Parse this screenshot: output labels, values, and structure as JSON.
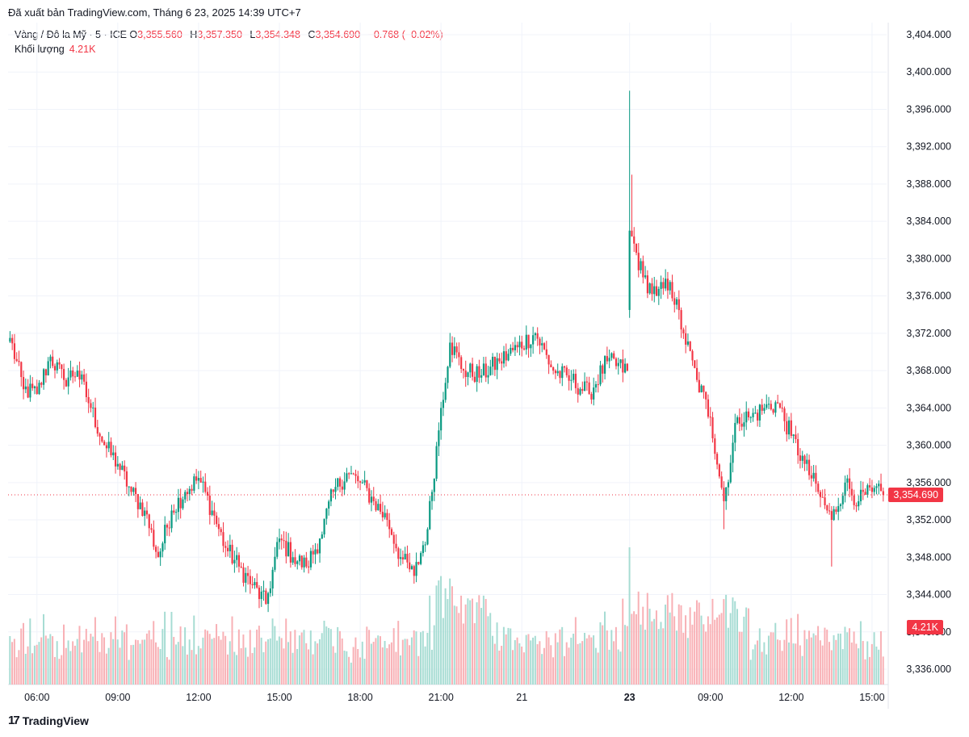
{
  "header": {
    "published": "Đã xuất bản TradingView.com, Tháng 6 23, 2025 14:39 UTC+7"
  },
  "legend": {
    "symbol": "Vàng / Đô la Mỹ · 5 · ICE",
    "o_label": "O",
    "o_value": "3,355.560",
    "h_label": "H",
    "h_value": "3,357.350",
    "l_label": "L",
    "l_value": "3,354.348",
    "c_label": "C",
    "c_value": "3,354.690",
    "change": "−0.768 (−0.02%)",
    "volume_label": "Khối lượng",
    "volume_value": "4.21K"
  },
  "price_tags": {
    "last_price": "3,354.690",
    "last_volume": "4.21K"
  },
  "footer": {
    "brand": "TradingView"
  },
  "colors": {
    "up": "#089981",
    "down": "#f23645",
    "vol_up": "#a6dcd3",
    "vol_down": "#f8b0b5",
    "grid": "#f0f3fa",
    "text": "#131722",
    "axis_text": "#131722"
  },
  "chart_data": {
    "type": "candlestick",
    "symbol": "Vàng / Đô la Mỹ",
    "interval": "5",
    "ylim": [
      3334.0,
      3406.0
    ],
    "y_ticks": [
      "3,336.000",
      "3,340.000",
      "3,344.000",
      "3,348.000",
      "3,352.000",
      "3,356.000",
      "3,360.000",
      "3,364.000",
      "3,368.000",
      "3,372.000",
      "3,376.000",
      "3,380.000",
      "3,384.000",
      "3,388.000",
      "3,392.000",
      "3,396.000",
      "3,400.000",
      "3,404.000"
    ],
    "x_ticks": [
      {
        "label": "06:00",
        "bar": 12,
        "bold": false
      },
      {
        "label": "09:00",
        "bar": 48,
        "bold": false
      },
      {
        "label": "12:00",
        "bar": 84,
        "bold": false
      },
      {
        "label": "15:00",
        "bar": 120,
        "bold": false
      },
      {
        "label": "18:00",
        "bar": 156,
        "bold": false
      },
      {
        "label": "21:00",
        "bar": 192,
        "bold": false
      },
      {
        "label": "21",
        "bar": 228,
        "bold": false
      },
      {
        "label": "23",
        "bar": 276,
        "bold": true
      },
      {
        "label": "09:00",
        "bar": 312,
        "bold": false
      },
      {
        "label": "12:00",
        "bar": 348,
        "bold": false
      },
      {
        "label": "15:00",
        "bar": 384,
        "bold": false
      }
    ],
    "gap_after_bar": 275,
    "last_price": 3354.69,
    "close_anchors": [
      [
        0,
        3371.5
      ],
      [
        6,
        3366.0
      ],
      [
        12,
        3365.5
      ],
      [
        18,
        3369.5
      ],
      [
        24,
        3367.0
      ],
      [
        30,
        3368.0
      ],
      [
        36,
        3364.0
      ],
      [
        42,
        3360.0
      ],
      [
        48,
        3358.0
      ],
      [
        54,
        3355.0
      ],
      [
        60,
        3353.0
      ],
      [
        66,
        3348.0
      ],
      [
        72,
        3353.0
      ],
      [
        78,
        3355.0
      ],
      [
        84,
        3356.5
      ],
      [
        90,
        3353.0
      ],
      [
        96,
        3349.0
      ],
      [
        102,
        3347.0
      ],
      [
        108,
        3345.0
      ],
      [
        114,
        3343.0
      ],
      [
        120,
        3350.0
      ],
      [
        126,
        3348.0
      ],
      [
        132,
        3347.0
      ],
      [
        138,
        3350.0
      ],
      [
        144,
        3355.0
      ],
      [
        150,
        3357.0
      ],
      [
        156,
        3356.0
      ],
      [
        162,
        3354.0
      ],
      [
        168,
        3352.0
      ],
      [
        174,
        3348.0
      ],
      [
        180,
        3346.0
      ],
      [
        186,
        3351.0
      ],
      [
        192,
        3364.0
      ],
      [
        196,
        3371.0
      ],
      [
        202,
        3368.0
      ],
      [
        210,
        3367.5
      ],
      [
        218,
        3369.0
      ],
      [
        226,
        3370.5
      ],
      [
        234,
        3372.0
      ],
      [
        242,
        3368.0
      ],
      [
        250,
        3367.0
      ],
      [
        258,
        3365.5
      ],
      [
        266,
        3369.0
      ],
      [
        275,
        3368.0
      ],
      [
        276,
        3383.0
      ],
      [
        282,
        3378.0
      ],
      [
        288,
        3376.0
      ],
      [
        294,
        3377.5
      ],
      [
        300,
        3372.0
      ],
      [
        306,
        3367.0
      ],
      [
        312,
        3363.0
      ],
      [
        318,
        3354.0
      ],
      [
        324,
        3363.0
      ],
      [
        330,
        3363.0
      ],
      [
        336,
        3364.0
      ],
      [
        342,
        3364.5
      ],
      [
        348,
        3361.0
      ],
      [
        354,
        3358.0
      ],
      [
        360,
        3355.0
      ],
      [
        366,
        3352.0
      ],
      [
        372,
        3356.0
      ],
      [
        378,
        3354.0
      ],
      [
        384,
        3355.0
      ],
      [
        389,
        3354.69
      ]
    ],
    "spikes": [
      {
        "bar": 276,
        "high": 3398.0
      },
      {
        "bar": 277,
        "high": 3389.0
      },
      {
        "bar": 318,
        "low": 3351.0
      },
      {
        "bar": 366,
        "low": 3347.0
      }
    ]
  }
}
